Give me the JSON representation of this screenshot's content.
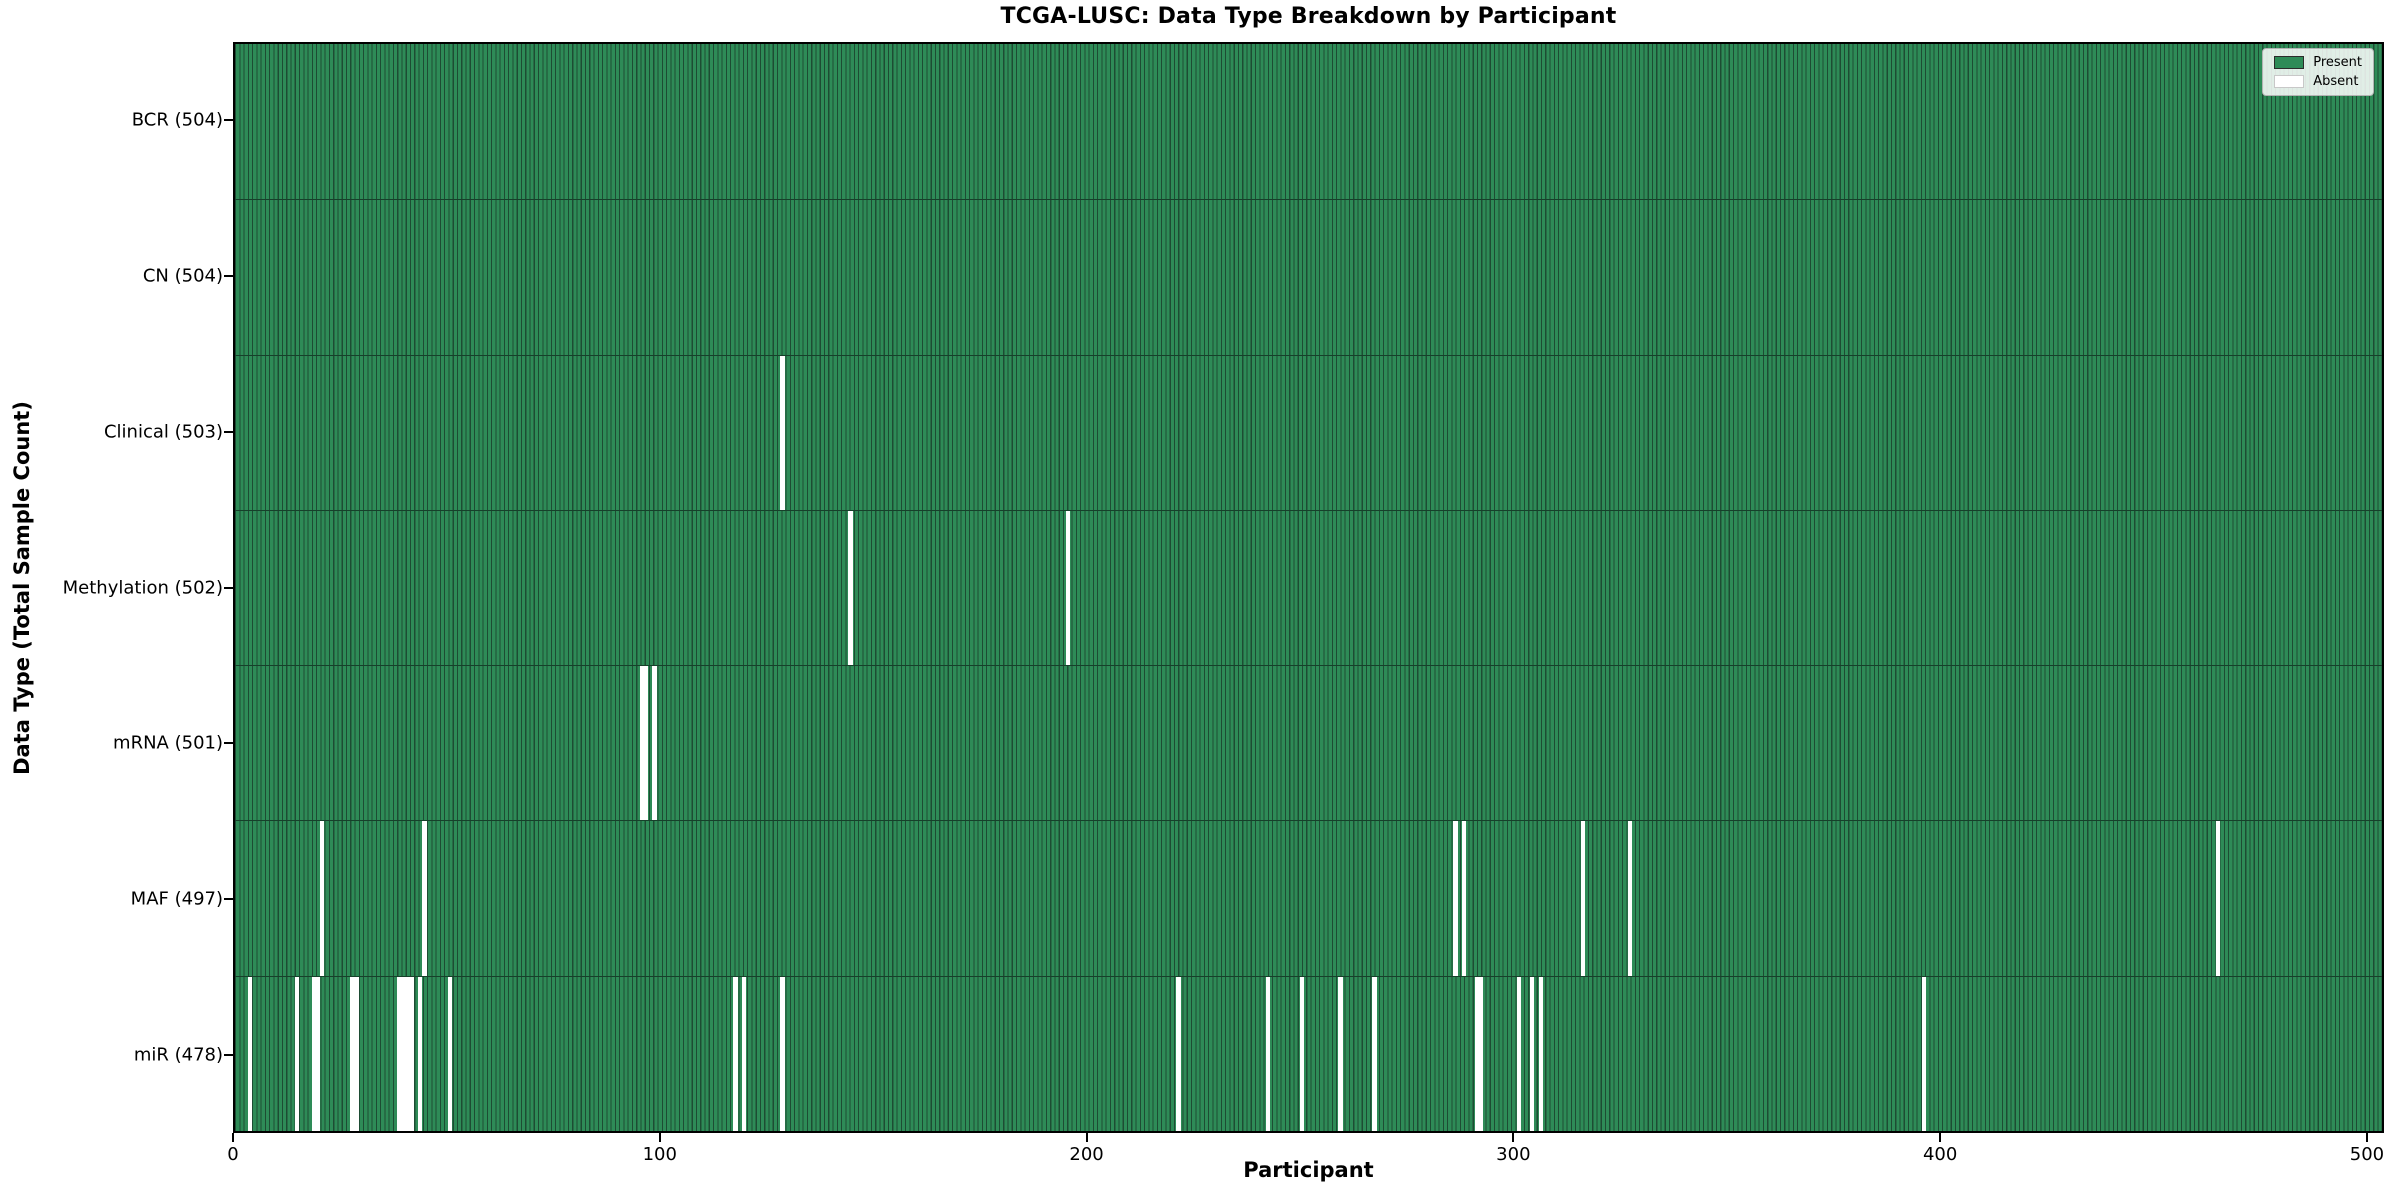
{
  "figure": {
    "title": "TCGA-LUSC: Data Type Breakdown by Participant",
    "xlabel": "Participant",
    "ylabel": "Data Type (Total Sample Count)"
  },
  "legend": {
    "items": [
      {
        "label": "Present",
        "color": "#2e8b57",
        "edge": "#2b2b2b"
      },
      {
        "label": "Absent",
        "color": "#ffffff",
        "edge": "#c8c8c8"
      }
    ]
  },
  "chart_data": {
    "type": "heatmap",
    "title": "TCGA-LUSC: Data Type Breakdown by Participant",
    "xlabel": "Participant",
    "ylabel": "Data Type (Total Sample Count)",
    "legend_entries": [
      "Present",
      "Absent"
    ],
    "legend_position": "upper right",
    "grid": false,
    "n_participants": 504,
    "xlim": [
      0,
      504
    ],
    "x_ticks": [
      0,
      100,
      200,
      300,
      400,
      500
    ],
    "present_color": "#2e8b57",
    "bar_edge_color": "#1d4c33",
    "absent_color": "#ffffff",
    "rows": [
      {
        "label": "BCR (504)",
        "data_type": "BCR",
        "present_count": 504,
        "absent_participants": []
      },
      {
        "label": "CN (504)",
        "data_type": "CN",
        "present_count": 504,
        "absent_participants": []
      },
      {
        "label": "Clinical (503)",
        "data_type": "Clinical",
        "present_count": 503,
        "absent_participants": [
          128
        ]
      },
      {
        "label": "Methylation (502)",
        "data_type": "Methylation",
        "present_count": 502,
        "absent_participants": [
          144,
          195
        ]
      },
      {
        "label": "mRNA (501)",
        "data_type": "mRNA",
        "present_count": 501,
        "absent_participants": [
          95,
          96,
          98
        ]
      },
      {
        "label": "MAF (497)",
        "data_type": "MAF",
        "present_count": 497,
        "absent_participants": [
          20,
          44,
          286,
          288,
          316,
          327,
          465
        ]
      },
      {
        "label": "miR (478)",
        "data_type": "miR",
        "present_count": 478,
        "absent_participants": [
          3,
          14,
          18,
          19,
          27,
          28,
          38,
          39,
          40,
          41,
          43,
          50,
          117,
          119,
          128,
          221,
          242,
          250,
          259,
          267,
          291,
          292,
          301,
          304,
          306,
          396
        ]
      }
    ]
  }
}
